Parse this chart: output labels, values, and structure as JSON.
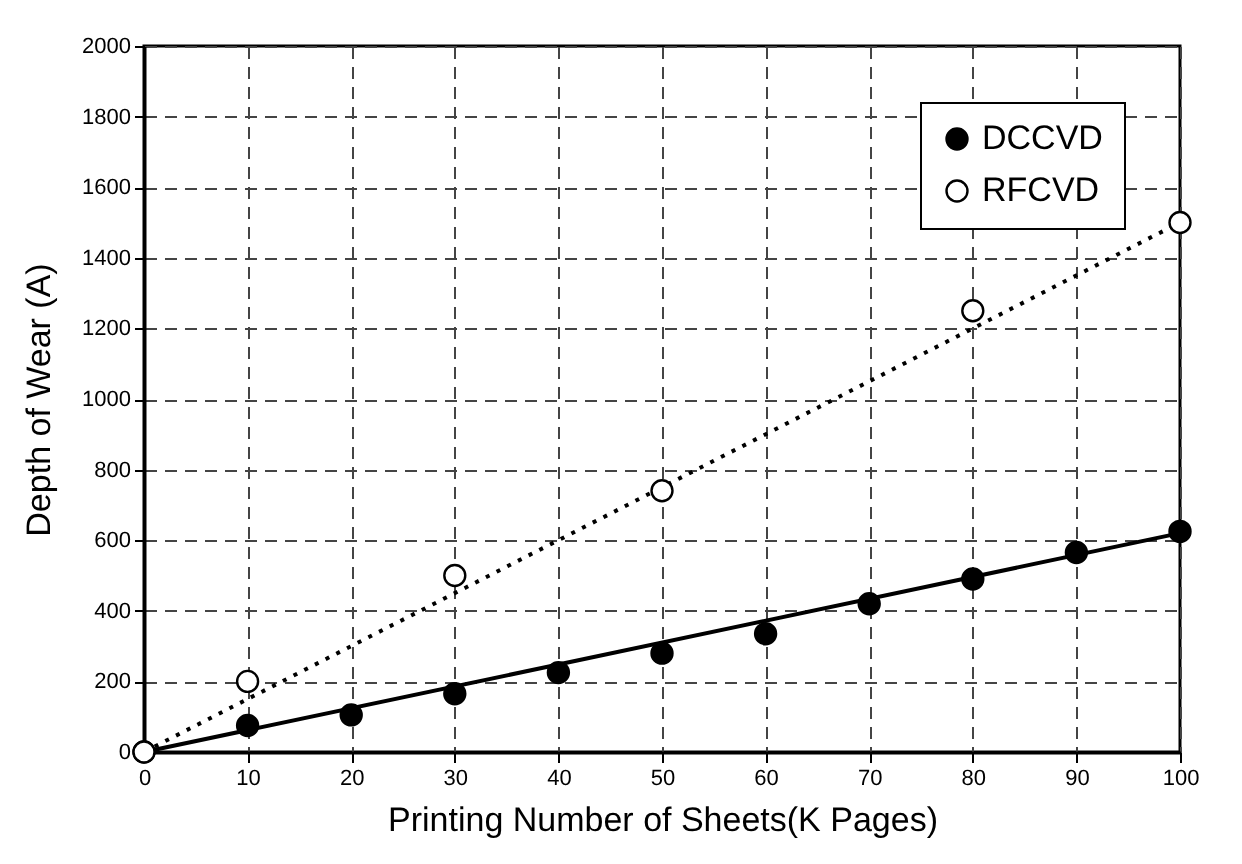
{
  "chart_data": {
    "type": "scatter",
    "xlabel": "Printing Number of Sheets(K Pages)",
    "ylabel": "Depth of Wear (A)",
    "xlim": [
      0,
      100
    ],
    "xticks": [
      0,
      10,
      20,
      30,
      40,
      50,
      60,
      70,
      80,
      90,
      100
    ],
    "ylim": [
      0,
      2000
    ],
    "yticks": [
      0,
      200,
      400,
      600,
      800,
      1000,
      1200,
      1400,
      1600,
      1800,
      2000
    ],
    "grid": true,
    "legend": "top right",
    "series": [
      {
        "name": "DCCVD",
        "marker": "circle",
        "color": "#000000",
        "x": [
          0,
          10,
          20,
          30,
          40,
          50,
          60,
          70,
          80,
          90,
          100
        ],
        "values": [
          0,
          75,
          105,
          165,
          225,
          280,
          335,
          420,
          490,
          565,
          625
        ]
      },
      {
        "name": "RFCVD",
        "marker": "circle",
        "color": "#ffffff",
        "x": [
          0,
          10,
          30,
          50,
          80,
          100
        ],
        "values": [
          0,
          200,
          500,
          740,
          1250,
          1500
        ]
      },
      {
        "type": "line",
        "marker": "none",
        "color": "#000000",
        "line_style": "solid",
        "x": [
          0,
          100
        ],
        "values": [
          0,
          620
        ]
      },
      {
        "type": "line",
        "marker": "none",
        "color": "#000000",
        "line_style": "dotted",
        "x": [
          0,
          100
        ],
        "values": [
          0,
          1500
        ]
      }
    ]
  }
}
